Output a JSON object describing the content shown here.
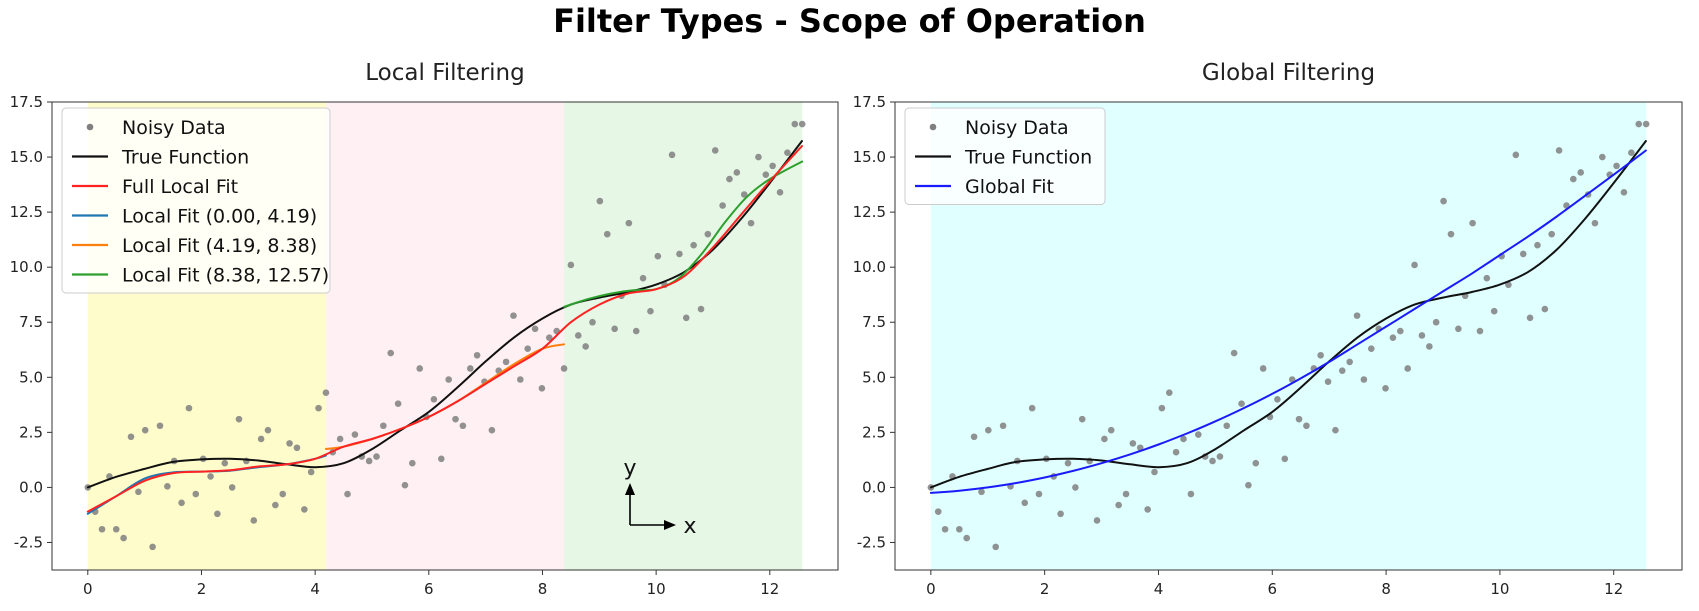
{
  "figure_title": "Filter Types - Scope of Operation",
  "colors": {
    "noisy": "#7f7f7f",
    "true_fn": "#111111",
    "full_local": "#ff2222",
    "seg1": "#1f77b4",
    "seg2": "#ff7f0e",
    "seg3": "#2ca02c",
    "global": "#1a1aff",
    "band1": "#fffccc",
    "band2": "#fff0f3",
    "band3": "#e6f7e6",
    "band_global": "#e0ffff"
  },
  "chart_data": [
    {
      "type": "line",
      "title": "Local Filtering",
      "xlim": [
        -0.63,
        13.2
      ],
      "ylim": [
        -3.75,
        17.5
      ],
      "xticks": [
        "0",
        "2",
        "4",
        "6",
        "8",
        "10",
        "12"
      ],
      "yticks": [
        "-2.5",
        "0.0",
        "2.5",
        "5.0",
        "7.5",
        "10.0",
        "12.5",
        "15.0",
        "17.5"
      ],
      "regions": [
        [
          0.0,
          4.19
        ],
        [
          4.19,
          8.38
        ],
        [
          8.38,
          12.57
        ]
      ],
      "legend_position": "upper left",
      "legend": [
        "Noisy Data",
        "True Function",
        "Full Local Fit",
        "Local Fit (0.00, 4.19)",
        "Local Fit (4.19, 8.38)",
        "Local Fit (8.38, 12.57)"
      ],
      "direction_labels": {
        "y": "y",
        "x": "x"
      },
      "series": [
        {
          "name": "True Function",
          "x": [
            0,
            0.5,
            1,
            1.5,
            2,
            2.5,
            3,
            3.5,
            4,
            4.5,
            5,
            5.5,
            6,
            6.5,
            7,
            7.5,
            8,
            8.5,
            9,
            9.5,
            10,
            10.5,
            11,
            11.5,
            12,
            12.566
          ],
          "y": [
            0,
            0.48,
            0.84,
            1.16,
            1.27,
            1.3,
            1.22,
            1.05,
            0.92,
            1.1,
            1.74,
            2.59,
            3.43,
            4.53,
            5.72,
            6.81,
            7.67,
            8.3,
            8.62,
            8.87,
            9.21,
            9.79,
            10.8,
            12.21,
            13.82,
            15.73
          ]
        },
        {
          "name": "Full Local Fit",
          "x": [
            0,
            0.5,
            1,
            1.5,
            2,
            2.5,
            3,
            3.5,
            4,
            4.5,
            5,
            5.5,
            6,
            6.5,
            7,
            7.5,
            8,
            8.5,
            9,
            9.5,
            10,
            10.5,
            11,
            11.5,
            12,
            12.566
          ],
          "y": [
            -1.1,
            -0.4,
            0.3,
            0.65,
            0.72,
            0.78,
            0.95,
            1.05,
            1.3,
            1.85,
            2.2,
            2.65,
            3.2,
            3.9,
            4.7,
            5.5,
            6.3,
            7.5,
            8.3,
            8.8,
            9.0,
            9.6,
            10.9,
            12.4,
            13.9,
            15.5
          ]
        },
        {
          "name": "Local Fit (0.00, 4.19)",
          "x": [
            0,
            0.5,
            1,
            1.5,
            2,
            2.5,
            3,
            3.5,
            4,
            4.19
          ],
          "y": [
            -1.2,
            -0.4,
            0.4,
            0.68,
            0.72,
            0.76,
            0.92,
            1.05,
            1.3,
            1.45
          ]
        },
        {
          "name": "Local Fit (4.19, 8.38)",
          "x": [
            4.19,
            4.5,
            5,
            5.5,
            6,
            6.5,
            7,
            7.5,
            8,
            8.38
          ],
          "y": [
            1.75,
            1.85,
            2.2,
            2.65,
            3.2,
            3.9,
            4.75,
            5.6,
            6.3,
            6.5
          ]
        },
        {
          "name": "Local Fit (8.38, 12.57)",
          "x": [
            8.38,
            8.8,
            9.2,
            9.6,
            10,
            10.4,
            10.8,
            11.2,
            11.6,
            12,
            12.57
          ],
          "y": [
            8.2,
            8.55,
            8.8,
            8.95,
            9.0,
            9.5,
            10.6,
            12.0,
            13.2,
            14.0,
            14.8
          ]
        }
      ],
      "noisy": {
        "x": [
          0,
          0.13,
          0.25,
          0.38,
          0.5,
          0.63,
          0.76,
          0.89,
          1.01,
          1.14,
          1.27,
          1.4,
          1.52,
          1.65,
          1.78,
          1.9,
          2.03,
          2.16,
          2.28,
          2.41,
          2.54,
          2.66,
          2.79,
          2.92,
          3.05,
          3.17,
          3.3,
          3.43,
          3.55,
          3.68,
          3.81,
          3.93,
          4.06,
          4.19,
          4.31,
          4.44,
          4.57,
          4.7,
          4.82,
          4.95,
          5.08,
          5.2,
          5.33,
          5.46,
          5.58,
          5.71,
          5.84,
          5.96,
          6.09,
          6.22,
          6.35,
          6.47,
          6.6,
          6.73,
          6.85,
          6.98,
          7.11,
          7.23,
          7.36,
          7.49,
          7.61,
          7.74,
          7.87,
          7.99,
          8.12,
          8.25,
          8.38,
          8.5,
          8.63,
          8.76,
          8.88,
          9.01,
          9.14,
          9.27,
          9.39,
          9.52,
          9.65,
          9.77,
          9.9,
          10.03,
          10.15,
          10.28,
          10.41,
          10.53,
          10.66,
          10.79,
          10.91,
          11.04,
          11.17,
          11.29,
          11.42,
          11.55,
          11.67,
          11.8,
          11.93,
          12.05,
          12.18,
          12.31,
          12.44,
          12.57
        ],
        "y": [
          0,
          -1.1,
          -1.9,
          0.5,
          -1.9,
          -2.3,
          2.3,
          -0.2,
          2.6,
          -2.7,
          2.8,
          0.05,
          1.2,
          -0.7,
          3.6,
          -0.3,
          1.3,
          0.5,
          -1.2,
          1.1,
          0,
          3.1,
          1.2,
          -1.5,
          2.2,
          2.6,
          -0.8,
          -0.3,
          2.0,
          1.8,
          -1.0,
          0.7,
          3.6,
          4.3,
          1.6,
          2.2,
          -0.3,
          2.4,
          1.4,
          1.2,
          1.4,
          2.8,
          6.1,
          3.8,
          0.1,
          1.1,
          5.4,
          3.2,
          4.0,
          1.3,
          4.9,
          3.1,
          2.8,
          5.4,
          6.0,
          4.8,
          2.6,
          5.3,
          5.7,
          7.8,
          4.9,
          6.3,
          7.2,
          4.5,
          6.8,
          7.1,
          5.4,
          10.1,
          6.9,
          6.4,
          7.5,
          13.0,
          11.5,
          7.2,
          8.7,
          12.0,
          7.1,
          9.5,
          8.0,
          10.5,
          9.2,
          15.1,
          10.6,
          7.7,
          11.0,
          8.1,
          11.5,
          15.3,
          12.8,
          14.0,
          14.3,
          13.3,
          12.0,
          15.0,
          14.2,
          14.6,
          13.4,
          15.2,
          16.5,
          16.5
        ]
      }
    },
    {
      "type": "line",
      "title": "Global Filtering",
      "xlim": [
        -0.63,
        13.2
      ],
      "ylim": [
        -3.75,
        17.5
      ],
      "xticks": [
        "0",
        "2",
        "4",
        "6",
        "8",
        "10",
        "12"
      ],
      "yticks": [
        "-2.5",
        "0.0",
        "2.5",
        "5.0",
        "7.5",
        "10.0",
        "12.5",
        "15.0",
        "17.5"
      ],
      "regions": [
        [
          0.0,
          12.57
        ]
      ],
      "legend_position": "upper left",
      "legend": [
        "Noisy Data",
        "True Function",
        "Global Fit"
      ],
      "series": [
        {
          "name": "True Function",
          "x": [
            0,
            0.5,
            1,
            1.5,
            2,
            2.5,
            3,
            3.5,
            4,
            4.5,
            5,
            5.5,
            6,
            6.5,
            7,
            7.5,
            8,
            8.5,
            9,
            9.5,
            10,
            10.5,
            11,
            11.5,
            12,
            12.566
          ],
          "y": [
            0,
            0.48,
            0.84,
            1.16,
            1.27,
            1.3,
            1.22,
            1.05,
            0.92,
            1.1,
            1.74,
            2.59,
            3.43,
            4.53,
            5.72,
            6.81,
            7.67,
            8.3,
            8.62,
            8.87,
            9.21,
            9.79,
            10.8,
            12.21,
            13.82,
            15.73
          ]
        },
        {
          "name": "Global Fit",
          "x": [
            0,
            0.5,
            1,
            1.5,
            2,
            2.5,
            3,
            3.5,
            4,
            4.5,
            5,
            5.5,
            6,
            6.5,
            7,
            7.5,
            8,
            8.5,
            9,
            9.5,
            10,
            10.5,
            11,
            11.5,
            12,
            12.566
          ],
          "y": [
            -0.25,
            -0.15,
            0.0,
            0.2,
            0.45,
            0.75,
            1.1,
            1.5,
            1.95,
            2.45,
            3.0,
            3.6,
            4.25,
            4.95,
            5.7,
            6.5,
            7.3,
            8.1,
            8.9,
            9.7,
            10.55,
            11.4,
            12.3,
            13.25,
            14.2,
            15.3
          ]
        }
      ],
      "noisy": "same-as-local"
    }
  ]
}
